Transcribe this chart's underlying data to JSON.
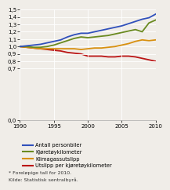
{
  "years": [
    1990,
    1991,
    1992,
    1993,
    1994,
    1995,
    1996,
    1997,
    1998,
    1999,
    2000,
    2001,
    2002,
    2003,
    2004,
    2005,
    2006,
    2007,
    2008,
    2009,
    2010
  ],
  "antall_personbiler": [
    1.0,
    1.01,
    1.02,
    1.03,
    1.05,
    1.07,
    1.09,
    1.13,
    1.16,
    1.18,
    1.18,
    1.2,
    1.22,
    1.24,
    1.26,
    1.28,
    1.31,
    1.34,
    1.37,
    1.39,
    1.44
  ],
  "kjoretoykm": [
    1.0,
    1.0,
    0.99,
    0.99,
    1.0,
    1.02,
    1.05,
    1.08,
    1.11,
    1.13,
    1.12,
    1.13,
    1.14,
    1.15,
    1.17,
    1.19,
    1.21,
    1.23,
    1.2,
    1.32,
    1.36
  ],
  "klimagass": [
    1.0,
    0.99,
    0.98,
    0.97,
    0.97,
    0.97,
    0.97,
    0.97,
    0.97,
    0.96,
    0.97,
    0.98,
    0.98,
    0.99,
    1.0,
    1.02,
    1.04,
    1.07,
    1.09,
    1.08,
    1.09
  ],
  "utslipp_per_km": [
    1.0,
    0.99,
    0.98,
    0.97,
    0.96,
    0.95,
    0.94,
    0.92,
    0.91,
    0.9,
    0.87,
    0.87,
    0.87,
    0.86,
    0.86,
    0.87,
    0.87,
    0.86,
    0.84,
    0.82,
    0.8
  ],
  "colors": {
    "antall_personbiler": "#3050bb",
    "kjoretoykm": "#6a8a20",
    "klimagass": "#d89010",
    "utslipp_per_km": "#bb1515"
  },
  "legend_labels": [
    "Antall personbiler",
    "Kjøretøykilometer",
    "Klimagassutslipp",
    "Utslipp per kjøretøykilometer"
  ],
  "footnote1": "* Foreløpige tall for 2010.",
  "footnote2": "Kilde: Statistisk sentralbyrå.",
  "ylim": [
    0.0,
    1.5
  ],
  "yticks": [
    0.0,
    0.7,
    0.8,
    0.9,
    1.0,
    1.1,
    1.2,
    1.3,
    1.4,
    1.5
  ],
  "xlim": [
    1990,
    2010
  ],
  "xticks": [
    1990,
    1995,
    2000,
    2005,
    2010
  ],
  "bg_color": "#f0ede8"
}
